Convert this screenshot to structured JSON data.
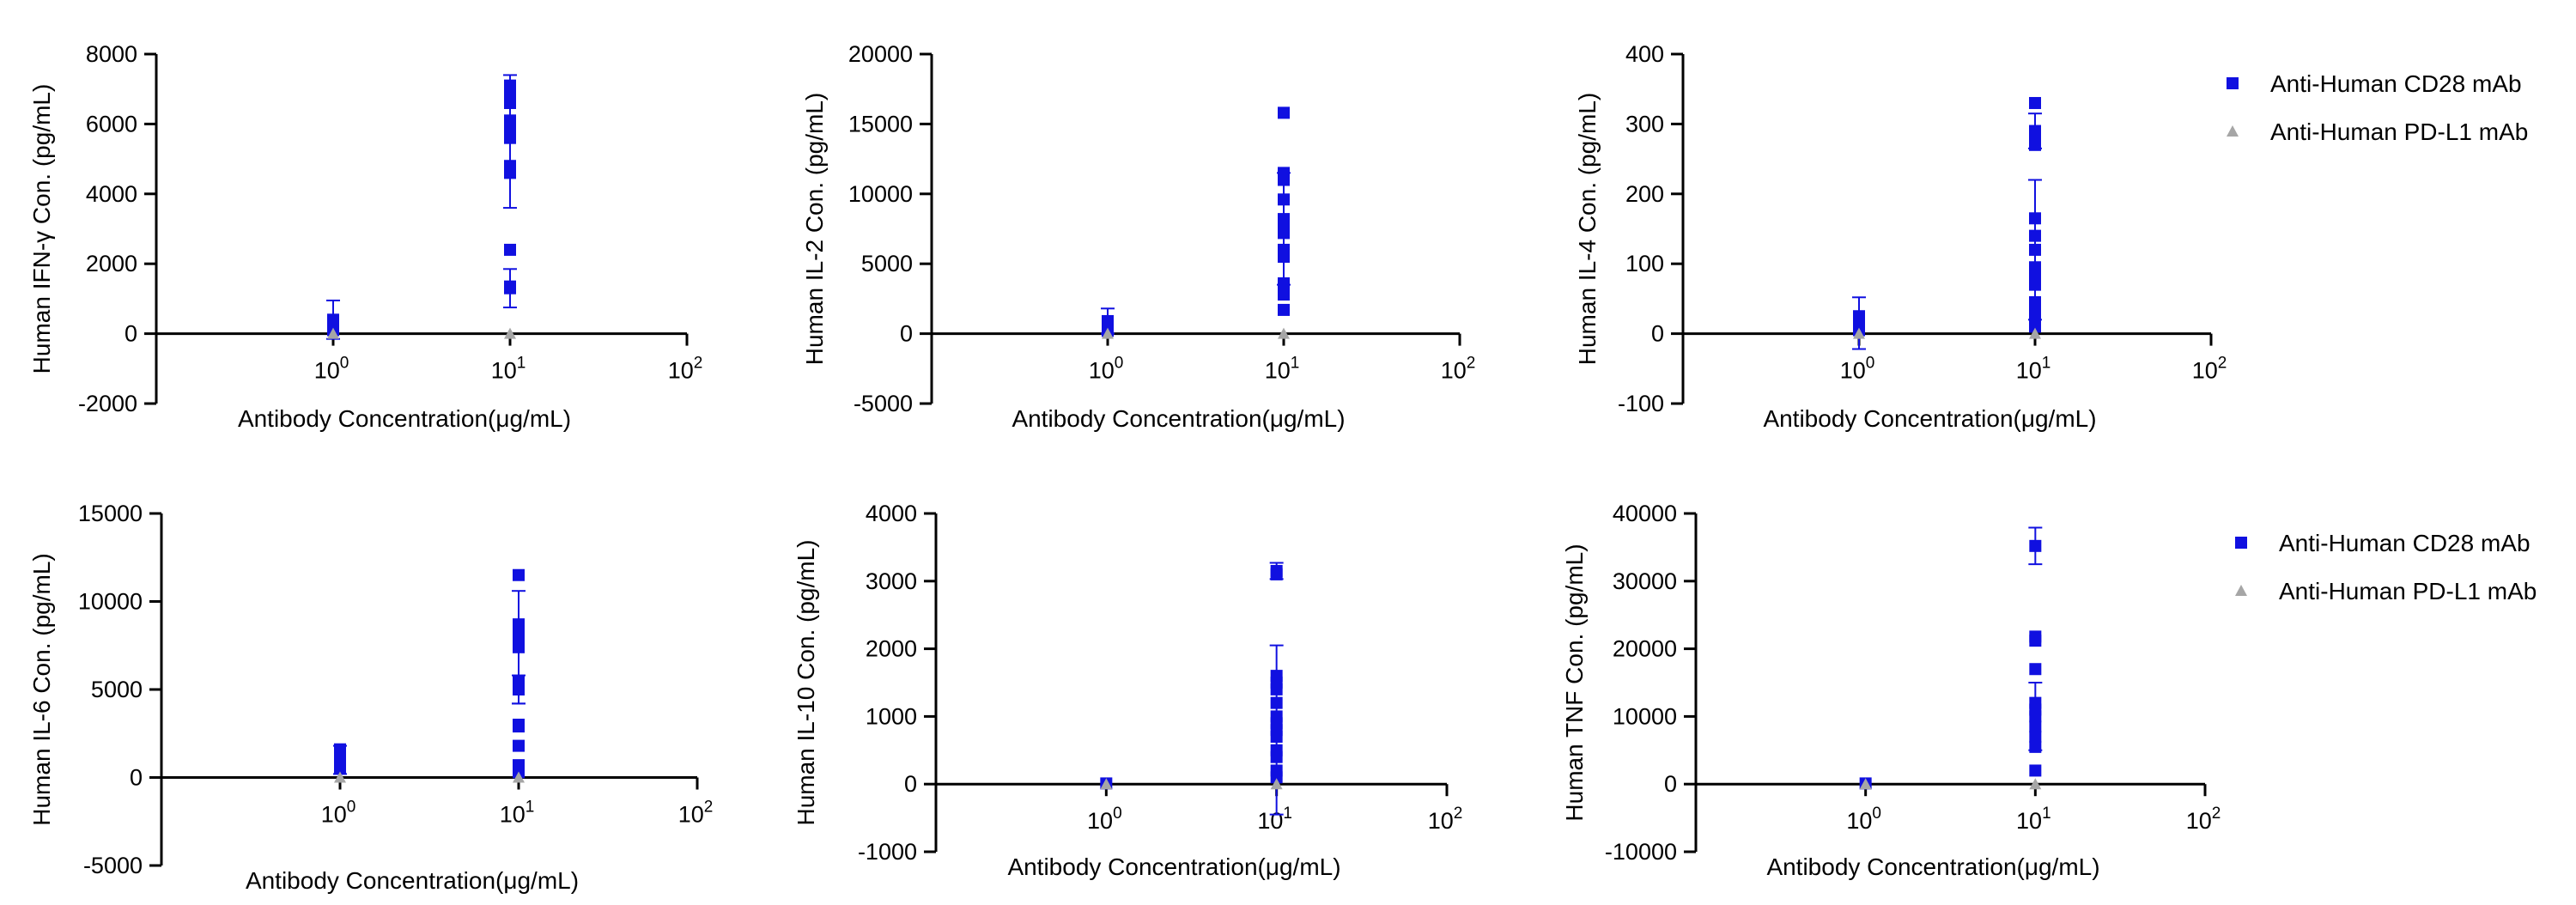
{
  "legend_entries": [
    "Anti-Human CD28 mAb",
    "Anti-Human PD-L1 mAb"
  ],
  "colors": {
    "cd28": "#1010e0",
    "pdl1": "#a6a6a6",
    "axis": "#000000"
  },
  "chart_data": [
    {
      "type": "scatter",
      "xlabel": "Antibody Concentration(μg/mL)",
      "ylabel": "Human IFN-γ Con. (pg/mL)",
      "x_scale": "log",
      "xlim": [
        0.1,
        100
      ],
      "x_ticks": [
        {
          "value": 1,
          "base": "10",
          "exp": "0"
        },
        {
          "value": 10,
          "base": "10",
          "exp": "1"
        },
        {
          "value": 100,
          "base": "10",
          "exp": "2"
        }
      ],
      "ylim": [
        -2000,
        8000
      ],
      "y_ticks": [
        "-2000",
        "0",
        "2000",
        "4000",
        "6000",
        "8000"
      ],
      "legend": "right",
      "series": [
        {
          "name": "Anti-Human CD28 mAb",
          "marker": "square",
          "x": [
            1,
            1,
            1,
            10,
            10,
            10,
            10,
            10,
            10,
            10,
            10,
            10,
            10,
            10,
            10
          ],
          "y": [
            100,
            250,
            400,
            7100,
            6900,
            6700,
            6600,
            6100,
            5900,
            5600,
            4800,
            4600,
            2400,
            1350,
            1300
          ],
          "error_bars": [
            {
              "x": 1,
              "y": 400,
              "err": 550
            },
            {
              "x": 10,
              "y": 5500,
              "err": 1900
            },
            {
              "x": 10,
              "y": 1300,
              "err": 550
            }
          ]
        },
        {
          "name": "Anti-Human PD-L1 mAb",
          "marker": "triangle",
          "x": [
            1,
            10
          ],
          "y": [
            0,
            0
          ]
        }
      ]
    },
    {
      "type": "scatter",
      "xlabel": "Antibody Concentration(μg/mL)",
      "ylabel": "Human IL-2 Con. (pg/mL)",
      "x_scale": "log",
      "xlim": [
        0.1,
        100
      ],
      "x_ticks": [
        {
          "value": 1,
          "base": "10",
          "exp": "0"
        },
        {
          "value": 10,
          "base": "10",
          "exp": "1"
        },
        {
          "value": 100,
          "base": "10",
          "exp": "2"
        }
      ],
      "ylim": [
        -5000,
        20000
      ],
      "y_ticks": [
        "-5000",
        "0",
        "5000",
        "10000",
        "15000",
        "20000"
      ],
      "legend": "none",
      "series": [
        {
          "name": "Anti-Human CD28 mAb",
          "marker": "square",
          "x": [
            1,
            1,
            10,
            10,
            10,
            10,
            10,
            10,
            10,
            10,
            10,
            10,
            10,
            10
          ],
          "y": [
            200,
            900,
            15800,
            11500,
            11000,
            9600,
            8200,
            7800,
            7200,
            6000,
            5500,
            3600,
            2800,
            1700
          ],
          "error_bars": [
            {
              "x": 1,
              "y": 900,
              "err": 900
            },
            {
              "x": 10,
              "y": 7500,
              "err": 4000
            }
          ]
        },
        {
          "name": "Anti-Human PD-L1 mAb",
          "marker": "triangle",
          "x": [
            1,
            10
          ],
          "y": [
            0,
            0
          ]
        }
      ]
    },
    {
      "type": "scatter",
      "xlabel": "Antibody Concentration(μg/mL)",
      "ylabel": "Human IL-4 Con. (pg/mL)",
      "x_scale": "log",
      "xlim": [
        0.1,
        100
      ],
      "x_ticks": [
        {
          "value": 1,
          "base": "10",
          "exp": "0"
        },
        {
          "value": 10,
          "base": "10",
          "exp": "1"
        },
        {
          "value": 100,
          "base": "10",
          "exp": "2"
        }
      ],
      "ylim": [
        -100,
        400
      ],
      "y_ticks": [
        "-100",
        "0",
        "100",
        "200",
        "300",
        "400"
      ],
      "legend": "none",
      "series": [
        {
          "name": "Anti-Human CD28 mAb",
          "marker": "square",
          "x": [
            1,
            1,
            1,
            10,
            10,
            10,
            10,
            10,
            10,
            10,
            10,
            10,
            10,
            10,
            10,
            10,
            10
          ],
          "y": [
            5,
            15,
            25,
            330,
            290,
            280,
            270,
            165,
            140,
            120,
            95,
            80,
            70,
            45,
            35,
            20,
            10
          ],
          "error_bars": [
            {
              "x": 1,
              "y": 15,
              "err": 37
            },
            {
              "x": 10,
              "y": 120,
              "err": 100
            },
            {
              "x": 10,
              "y": 290,
              "err": 25
            }
          ]
        },
        {
          "name": "Anti-Human PD-L1 mAb",
          "marker": "triangle",
          "x": [
            1,
            10
          ],
          "y": [
            0,
            0
          ]
        }
      ]
    },
    {
      "type": "scatter",
      "xlabel": "Antibody Concentration(μg/mL)",
      "ylabel": "Human IL-6 Con. (pg/mL)",
      "x_scale": "log",
      "xlim": [
        0.1,
        100
      ],
      "x_ticks": [
        {
          "value": 1,
          "base": "10",
          "exp": "0"
        },
        {
          "value": 10,
          "base": "10",
          "exp": "1"
        },
        {
          "value": 100,
          "base": "10",
          "exp": "2"
        }
      ],
      "ylim": [
        -5000,
        15000
      ],
      "y_ticks": [
        "-5000",
        "0",
        "5000",
        "10000",
        "15000"
      ],
      "legend": "right",
      "series": [
        {
          "name": "Anti-Human CD28 mAb",
          "marker": "square",
          "x": [
            1,
            1,
            1,
            10,
            10,
            10,
            10,
            10,
            10,
            10,
            10,
            10,
            10,
            10,
            10
          ],
          "y": [
            500,
            1000,
            1600,
            11500,
            8700,
            8300,
            7900,
            7400,
            5500,
            5000,
            3000,
            2900,
            1800,
            700,
            300
          ],
          "error_bars": [
            {
              "x": 1,
              "y": 1000,
              "err": 800
            },
            {
              "x": 10,
              "y": 7400,
              "err": 3200
            },
            {
              "x": 10,
              "y": 5000,
              "err": 800
            }
          ]
        },
        {
          "name": "Anti-Human PD-L1 mAb",
          "marker": "triangle",
          "x": [
            1,
            10
          ],
          "y": [
            0,
            0
          ]
        }
      ]
    },
    {
      "type": "scatter",
      "xlabel": "Antibody Concentration(μg/mL)",
      "ylabel": "Human IL-10 Con. (pg/mL)",
      "x_scale": "log",
      "xlim": [
        0.1,
        100
      ],
      "x_ticks": [
        {
          "value": 1,
          "base": "10",
          "exp": "0"
        },
        {
          "value": 10,
          "base": "10",
          "exp": "1"
        },
        {
          "value": 100,
          "base": "10",
          "exp": "2"
        }
      ],
      "ylim": [
        -1000,
        4000
      ],
      "y_ticks": [
        "-1000",
        "0",
        "1000",
        "2000",
        "3000",
        "4000"
      ],
      "legend": "none",
      "series": [
        {
          "name": "Anti-Human CD28 mAb",
          "marker": "square",
          "x": [
            1,
            10,
            10,
            10,
            10,
            10,
            10,
            10,
            10,
            10,
            10,
            10,
            10,
            10,
            10
          ],
          "y": [
            10,
            3150,
            3100,
            1600,
            1500,
            1400,
            1200,
            1000,
            900,
            800,
            700,
            500,
            400,
            200,
            100
          ],
          "error_bars": [
            {
              "x": 10,
              "y": 3150,
              "err": 120
            },
            {
              "x": 10,
              "y": 800,
              "err": 1250
            }
          ]
        },
        {
          "name": "Anti-Human PD-L1 mAb",
          "marker": "triangle",
          "x": [
            1,
            10
          ],
          "y": [
            0,
            0
          ]
        }
      ]
    },
    {
      "type": "scatter",
      "xlabel": "Antibody Concentration(μg/mL)",
      "ylabel": "Human TNF Con. (pg/mL)",
      "x_scale": "log",
      "xlim": [
        0.1,
        100
      ],
      "x_ticks": [
        {
          "value": 1,
          "base": "10",
          "exp": "0"
        },
        {
          "value": 10,
          "base": "10",
          "exp": "1"
        },
        {
          "value": 100,
          "base": "10",
          "exp": "2"
        }
      ],
      "ylim": [
        -10000,
        40000
      ],
      "y_ticks": [
        "-10000",
        "0",
        "10000",
        "20000",
        "30000",
        "40000"
      ],
      "legend": "right",
      "series": [
        {
          "name": "Anti-Human CD28 mAb",
          "marker": "square",
          "x": [
            1,
            10,
            10,
            10,
            10,
            10,
            10,
            10,
            10,
            10,
            10,
            10
          ],
          "y": [
            100,
            35200,
            21800,
            21200,
            17000,
            12000,
            11000,
            10000,
            8500,
            7000,
            5500,
            2000
          ],
          "error_bars": [
            {
              "x": 10,
              "y": 35200,
              "err": 2700
            },
            {
              "x": 10,
              "y": 10000,
              "err": 5000
            }
          ]
        },
        {
          "name": "Anti-Human PD-L1 mAb",
          "marker": "triangle",
          "x": [
            1,
            10
          ],
          "y": [
            0,
            0
          ]
        }
      ]
    }
  ]
}
